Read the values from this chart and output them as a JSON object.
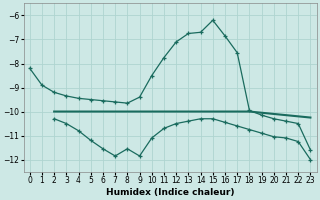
{
  "xlabel": "Humidex (Indice chaleur)",
  "background_color": "#cde8e5",
  "grid_color": "#afd4d0",
  "line_color": "#1a6b5e",
  "line1_x": [
    0,
    1,
    2,
    3,
    4,
    5,
    6,
    7,
    8,
    9,
    10,
    11,
    12,
    13,
    14,
    15,
    16,
    17,
    18,
    19,
    20,
    21,
    22,
    23
  ],
  "line1_y": [
    -8.2,
    -8.9,
    -9.2,
    -9.35,
    -9.45,
    -9.5,
    -9.55,
    -9.6,
    -9.65,
    -9.4,
    -8.5,
    -7.75,
    -7.1,
    -6.75,
    -6.7,
    -6.2,
    -6.85,
    -7.55,
    -9.95,
    -10.15,
    -10.3,
    -10.4,
    -10.5,
    -11.6
  ],
  "line2_x": [
    2,
    3,
    4,
    5,
    6,
    7,
    8,
    9,
    10,
    11,
    12,
    13,
    14,
    15,
    16,
    17,
    18,
    19,
    20,
    21,
    22,
    23
  ],
  "line2_y": [
    -10.0,
    -10.0,
    -10.0,
    -10.0,
    -10.0,
    -10.0,
    -10.0,
    -10.0,
    -10.0,
    -10.0,
    -10.0,
    -10.0,
    -10.0,
    -10.0,
    -10.0,
    -10.0,
    -10.0,
    -10.05,
    -10.1,
    -10.15,
    -10.2,
    -10.25
  ],
  "line3_x": [
    2,
    3,
    4,
    5,
    6,
    7,
    8,
    9,
    10,
    11,
    12,
    13,
    14,
    15,
    16,
    17,
    18,
    19,
    20,
    21,
    22,
    23
  ],
  "line3_y": [
    -10.3,
    -10.5,
    -10.8,
    -11.2,
    -11.55,
    -11.85,
    -11.55,
    -11.85,
    -11.1,
    -10.7,
    -10.5,
    -10.4,
    -10.3,
    -10.3,
    -10.45,
    -10.6,
    -10.75,
    -10.9,
    -11.05,
    -11.1,
    -11.25,
    -12.0
  ],
  "ylim": [
    -12.5,
    -5.5
  ],
  "xlim": [
    -0.5,
    23.5
  ],
  "yticks": [
    -12,
    -11,
    -10,
    -9,
    -8,
    -7,
    -6
  ],
  "xticks": [
    0,
    1,
    2,
    3,
    4,
    5,
    6,
    7,
    8,
    9,
    10,
    11,
    12,
    13,
    14,
    15,
    16,
    17,
    18,
    19,
    20,
    21,
    22,
    23
  ]
}
